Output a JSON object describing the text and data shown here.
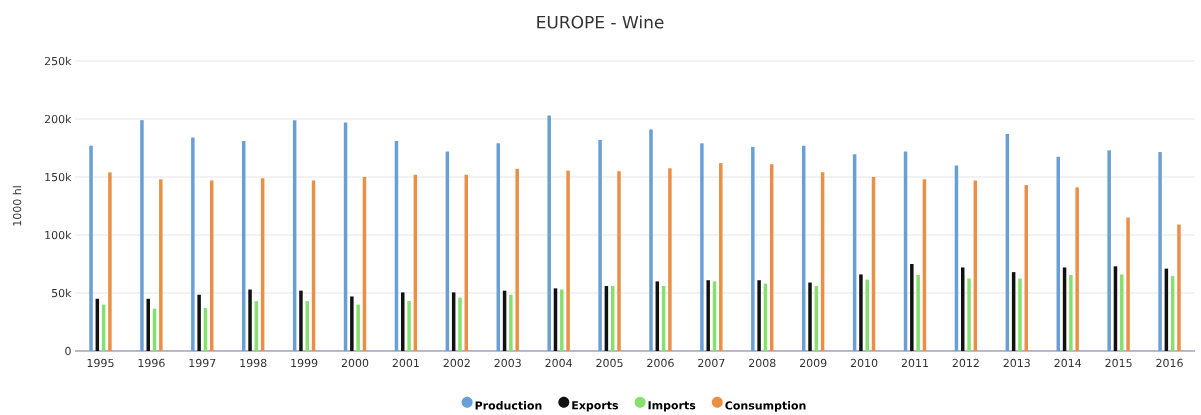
{
  "chart_data": {
    "type": "bar",
    "title": "EUROPE - Wine",
    "ylabel": "1000 hl",
    "categories": [
      "1995",
      "1996",
      "1997",
      "1998",
      "1999",
      "2000",
      "2001",
      "2002",
      "2003",
      "2004",
      "2005",
      "2006",
      "2007",
      "2008",
      "2009",
      "2010",
      "2011",
      "2012",
      "2013",
      "2014",
      "2015",
      "2016"
    ],
    "series": [
      {
        "name": "Production",
        "color": "#6a9fd6",
        "values": [
          177000,
          199000,
          184000,
          181000,
          199000,
          197000,
          181000,
          172000,
          179000,
          203000,
          182000,
          191000,
          179000,
          176000,
          177000,
          169500,
          172000,
          160000,
          187000,
          167500,
          173000,
          171500
        ]
      },
      {
        "name": "Exports",
        "color": "#111111",
        "values": [
          45000,
          45000,
          48500,
          53000,
          52000,
          47000,
          50500,
          50500,
          52000,
          54000,
          56000,
          60000,
          61000,
          61000,
          59000,
          66000,
          75000,
          72000,
          68000,
          72000,
          73000,
          71000
        ]
      },
      {
        "name": "Imports",
        "color": "#86e06f",
        "values": [
          40000,
          36500,
          37000,
          43000,
          43000,
          40000,
          43000,
          46000,
          48500,
          53000,
          56000,
          56000,
          60000,
          58000,
          56000,
          61500,
          65500,
          62500,
          62500,
          65500,
          66000,
          64500
        ]
      },
      {
        "name": "Consumption",
        "color": "#ea8f46",
        "values": [
          154000,
          148000,
          147000,
          149000,
          147000,
          150000,
          152000,
          152000,
          157000,
          155500,
          155000,
          157500,
          162000,
          161000,
          154000,
          150000,
          148000,
          147000,
          143000,
          141000,
          115000,
          109000
        ]
      }
    ],
    "ylim": [
      0,
      250000
    ],
    "yticks": [
      0,
      {
        "value": 50000,
        "label": "50k"
      },
      {
        "value": 100000,
        "label": "100k"
      },
      {
        "value": 150000,
        "label": "150k"
      },
      {
        "value": 200000,
        "label": "200k"
      },
      {
        "value": 250000,
        "label": "250k"
      }
    ],
    "grid": "y",
    "legend": "bottom"
  }
}
